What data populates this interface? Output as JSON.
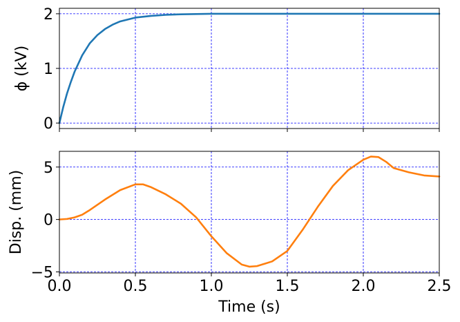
{
  "chart_data": [
    {
      "type": "line",
      "ylabel": "ϕ (kV)",
      "xlim": [
        0,
        2.5
      ],
      "ylim": [
        -0.1,
        2.1
      ],
      "xticks": [
        0,
        0.5,
        1.0,
        1.5,
        2.0,
        2.5
      ],
      "yticks": [
        0,
        1,
        2
      ],
      "ytick_labels": [
        "0",
        "1",
        "2"
      ],
      "grid": true,
      "color": "#1f77b4",
      "series": [
        {
          "x": [
            0,
            0.025,
            0.05,
            0.075,
            0.1,
            0.15,
            0.2,
            0.25,
            0.3,
            0.35,
            0.4,
            0.5,
            0.6,
            0.7,
            0.8,
            1.0,
            1.2,
            1.5,
            2.0,
            2.5
          ],
          "y": [
            0,
            0.29,
            0.54,
            0.75,
            0.94,
            1.24,
            1.46,
            1.61,
            1.72,
            1.8,
            1.86,
            1.93,
            1.96,
            1.98,
            1.99,
            2.0,
            2.0,
            2.0,
            2.0,
            2.0
          ]
        }
      ]
    },
    {
      "type": "line",
      "xlabel": "Time (s)",
      "ylabel": "Disp. (mm)",
      "xlim": [
        0,
        2.5
      ],
      "ylim": [
        -5.1,
        6.5
      ],
      "xticks": [
        0,
        0.5,
        1.0,
        1.5,
        2.0,
        2.5
      ],
      "xtick_labels": [
        "0.0",
        "0.5",
        "1.0",
        "1.5",
        "2.0",
        "2.5"
      ],
      "yticks": [
        -5,
        0,
        5
      ],
      "ytick_labels": [
        "−5",
        "0",
        "5"
      ],
      "grid": true,
      "color": "#ff7f0e",
      "series": [
        {
          "x": [
            0,
            0.05,
            0.1,
            0.15,
            0.2,
            0.3,
            0.4,
            0.5,
            0.55,
            0.6,
            0.7,
            0.8,
            0.9,
            1.0,
            1.1,
            1.2,
            1.25,
            1.3,
            1.4,
            1.5,
            1.6,
            1.7,
            1.8,
            1.9,
            2.0,
            2.05,
            2.1,
            2.15,
            2.2,
            2.3,
            2.4,
            2.5
          ],
          "y": [
            0,
            0.05,
            0.2,
            0.45,
            0.9,
            1.9,
            2.8,
            3.35,
            3.35,
            3.1,
            2.4,
            1.5,
            0.2,
            -1.6,
            -3.2,
            -4.3,
            -4.5,
            -4.45,
            -4.0,
            -3.0,
            -1.0,
            1.2,
            3.2,
            4.7,
            5.7,
            6.0,
            5.95,
            5.5,
            4.9,
            4.5,
            4.2,
            4.1
          ]
        }
      ]
    }
  ]
}
